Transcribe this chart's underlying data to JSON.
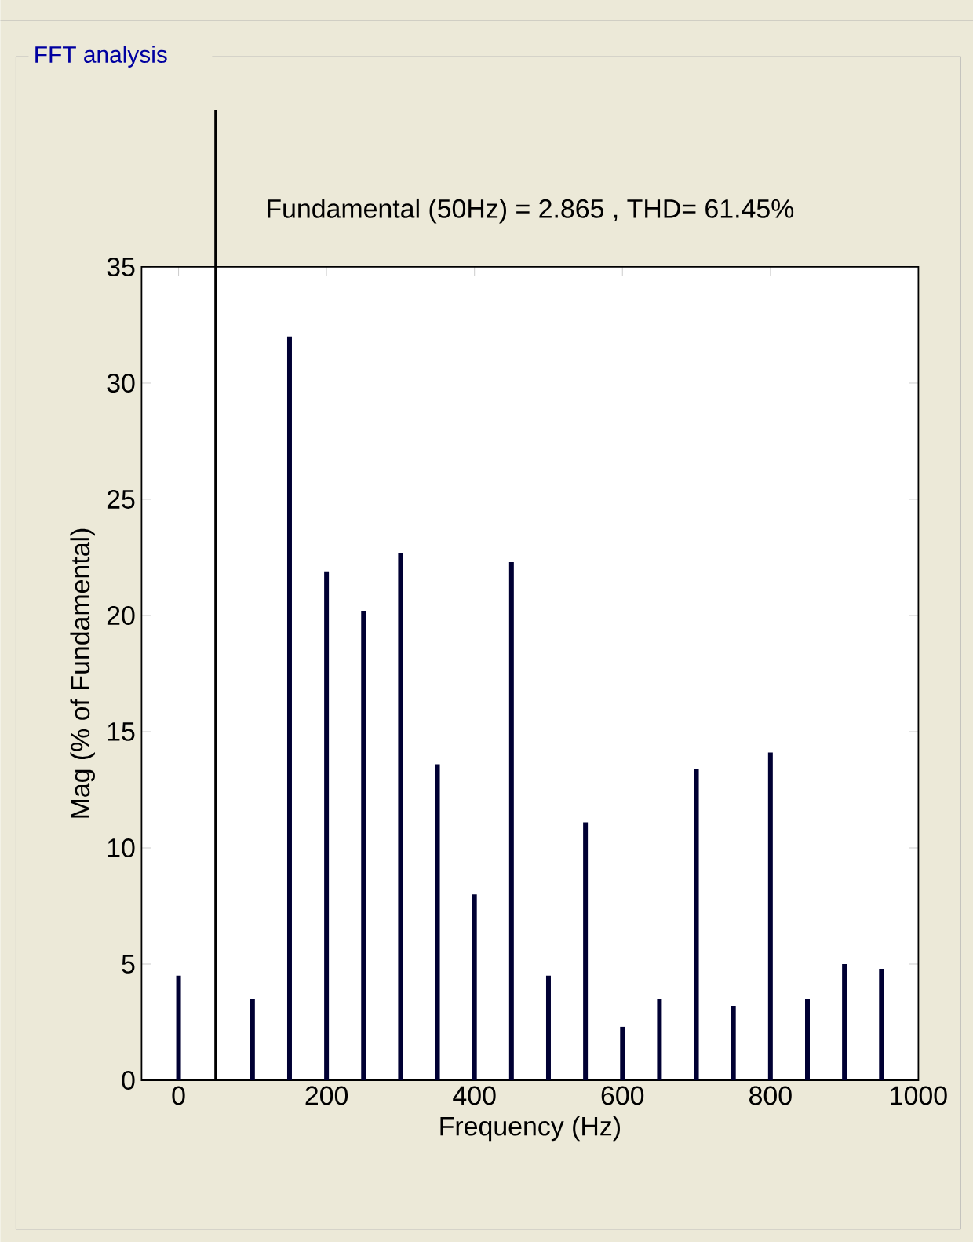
{
  "chart_data": {
    "type": "bar",
    "title": "Fundamental (50Hz) = 2.865 , THD= 61.45%",
    "xlabel": "Frequency (Hz)",
    "ylabel": "Mag (% of Fundamental)",
    "annotations": [
      "FFT analysis"
    ],
    "x": [
      0,
      100,
      150,
      200,
      250,
      300,
      350,
      400,
      450,
      500,
      550,
      600,
      650,
      700,
      750,
      800,
      850,
      900,
      950
    ],
    "values": [
      4.5,
      3.5,
      32,
      21.9,
      20.2,
      22.7,
      13.6,
      8.0,
      22.3,
      4.5,
      11.1,
      2.3,
      3.5,
      13.4,
      3.2,
      14.1,
      3.5,
      5.0,
      4.8
    ],
    "color": "#000033",
    "xlim": [
      -50,
      1000
    ],
    "xticks": [
      0,
      200,
      400,
      600,
      800,
      1000
    ],
    "ylim": [
      0,
      35
    ],
    "yticks": [
      0,
      5,
      10,
      15,
      20,
      25,
      30,
      35
    ],
    "ref_lines": [
      {
        "axis": "x",
        "value": 50,
        "color": "#000000"
      }
    ],
    "grid": false
  }
}
